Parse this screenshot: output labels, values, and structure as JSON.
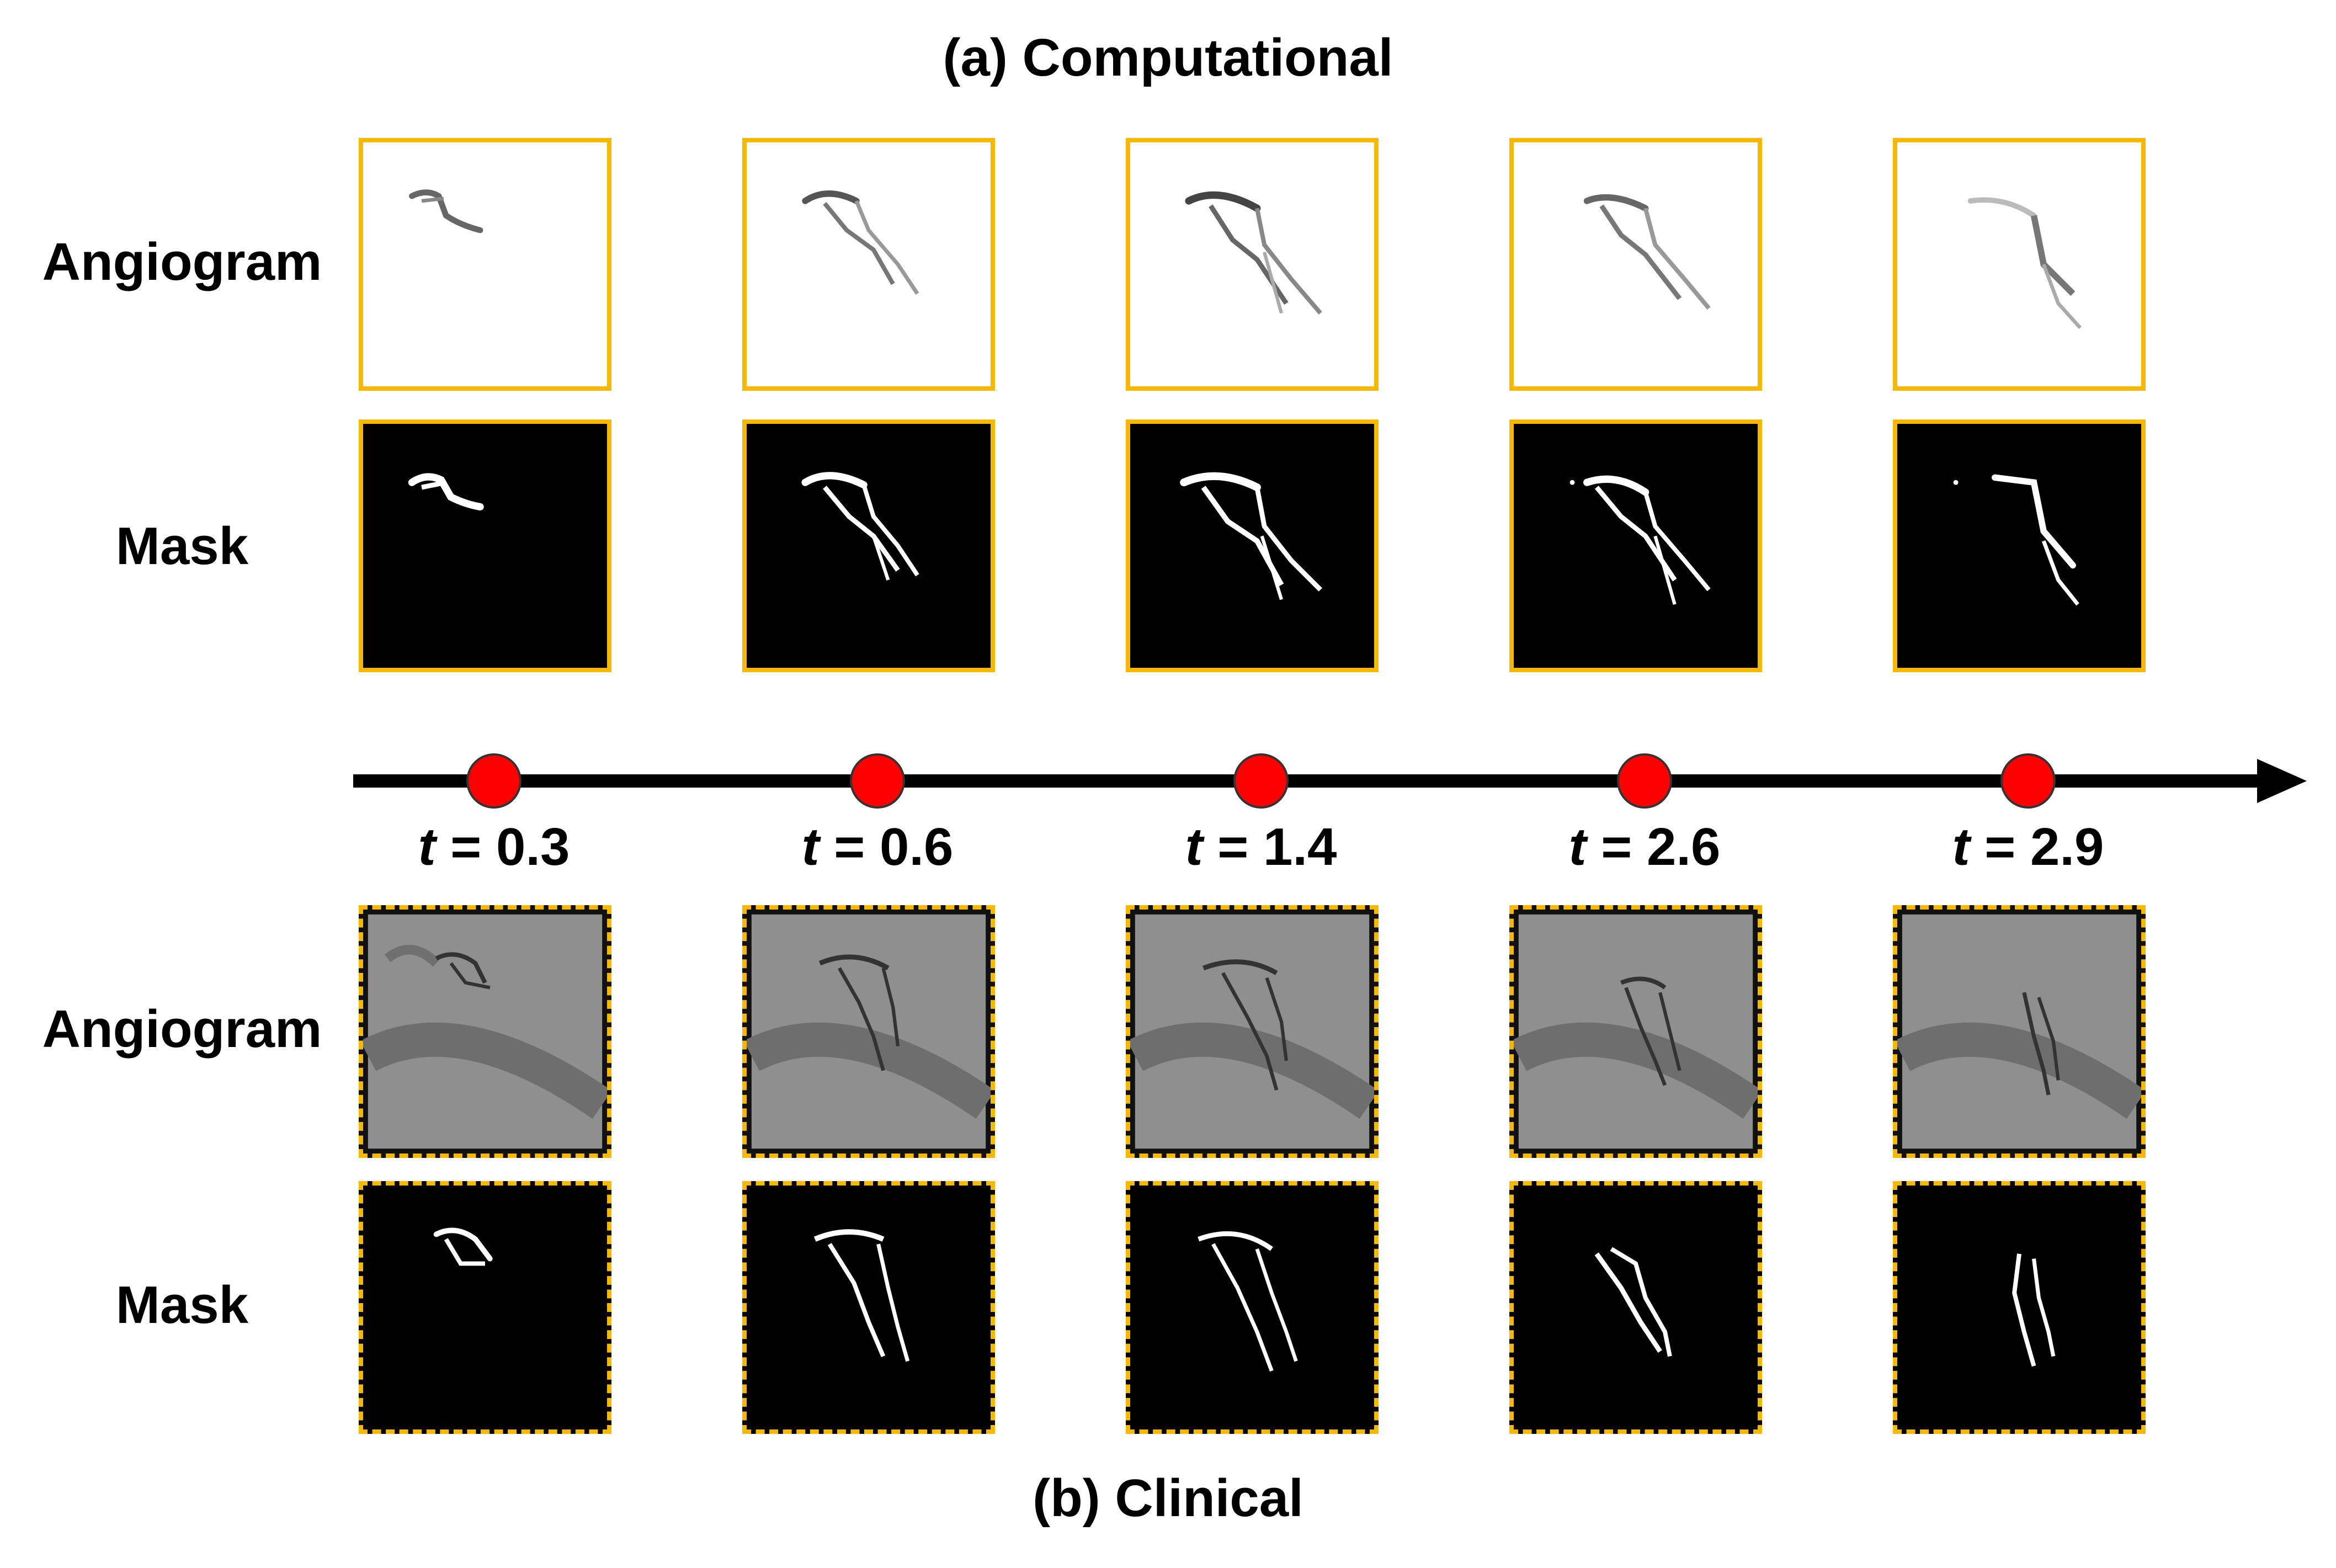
{
  "figure": {
    "top_heading": "(a) Computational",
    "bottom_heading": "(b) Clinical",
    "computational": {
      "angiogram_label": "Angiogram",
      "mask_label": "Mask"
    },
    "clinical": {
      "angiogram_label": "Angiogram",
      "mask_label": "Mask"
    },
    "timeline": {
      "variable": "t",
      "equals": " = ",
      "points": [
        {
          "value": "0.3"
        },
        {
          "value": "0.6"
        },
        {
          "value": "1.4"
        },
        {
          "value": "2.6"
        },
        {
          "value": "2.9"
        }
      ]
    }
  },
  "colors": {
    "frame": "#f6b800",
    "marker": "#ff0000",
    "axis": "#000000"
  }
}
